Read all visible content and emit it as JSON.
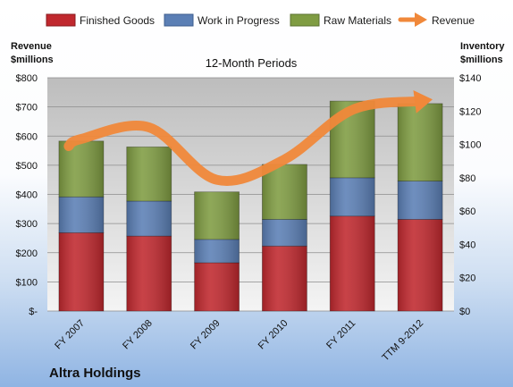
{
  "chart_data": {
    "type": "bar",
    "subtitle": "12-Month Periods",
    "company": "Altra Holdings",
    "categories": [
      "FY 2007",
      "FY 2008",
      "FY 2009",
      "FY 2010",
      "FY 2011",
      "TTM 9-2012"
    ],
    "left_axis": {
      "title_line1": "Revenue",
      "title_line2": "$millions",
      "ylim": [
        0,
        800
      ],
      "ticks": [
        0,
        100,
        200,
        300,
        400,
        500,
        600,
        700,
        800
      ],
      "tick_labels": [
        "$-",
        "$100",
        "$200",
        "$300",
        "$400",
        "$500",
        "$600",
        "$700",
        "$800"
      ]
    },
    "right_axis": {
      "title_line1": "Inventory",
      "title_line2": "$millions",
      "ylim": [
        0,
        140
      ],
      "ticks": [
        0,
        20,
        40,
        60,
        80,
        100,
        120,
        140
      ],
      "tick_labels": [
        "$0",
        "$20",
        "$40",
        "$60",
        "$80",
        "$100",
        "$120",
        "$140"
      ]
    },
    "series": [
      {
        "name": "Finished Goods",
        "axis": "right",
        "color": "#c0282e",
        "values": [
          47,
          45,
          29,
          39,
          57,
          55
        ]
      },
      {
        "name": "Work in Progress",
        "axis": "right",
        "color": "#5b7fb5",
        "values": [
          21.5,
          21,
          14,
          16,
          23,
          23
        ]
      },
      {
        "name": "Raw Materials",
        "axis": "right",
        "color": "#7f9c42",
        "values": [
          33.5,
          32.5,
          28.5,
          33,
          46,
          46.5
        ]
      },
      {
        "name": "Revenue",
        "axis": "left",
        "color": "#f0883a",
        "type": "line",
        "values": [
          590,
          630,
          450,
          520,
          690,
          720
        ]
      }
    ],
    "grid": true,
    "legend_position": "top"
  }
}
